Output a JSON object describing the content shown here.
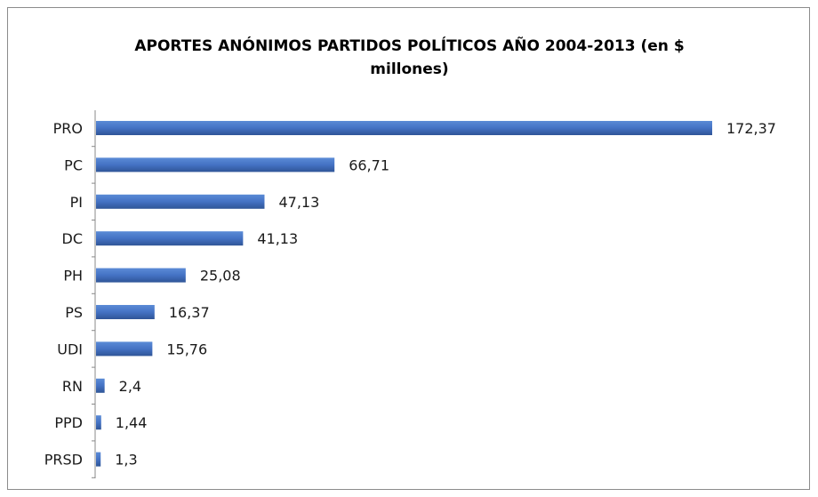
{
  "chart_data": {
    "type": "bar",
    "orientation": "horizontal",
    "title_lines": [
      "APORTES ANÓNIMOS PARTIDOS POLÍTICOS AÑO 2004-2013 (en $",
      "millones)"
    ],
    "categories": [
      "PRO",
      "PC",
      "PI",
      "DC",
      "PH",
      "PS",
      "UDI",
      "RN",
      "PPD",
      "PRSD"
    ],
    "values": [
      172.37,
      66.71,
      47.13,
      41.13,
      25.08,
      16.37,
      15.76,
      2.4,
      1.44,
      1.3
    ],
    "value_labels": [
      "172,37",
      "66,71",
      "47,13",
      "41,13",
      "25,08",
      "16,37",
      "15,76",
      "2,4",
      "1,44",
      "1,3"
    ],
    "xlim": [
      0,
      172.37
    ],
    "grid": false,
    "bar_color": "#4472c4"
  }
}
